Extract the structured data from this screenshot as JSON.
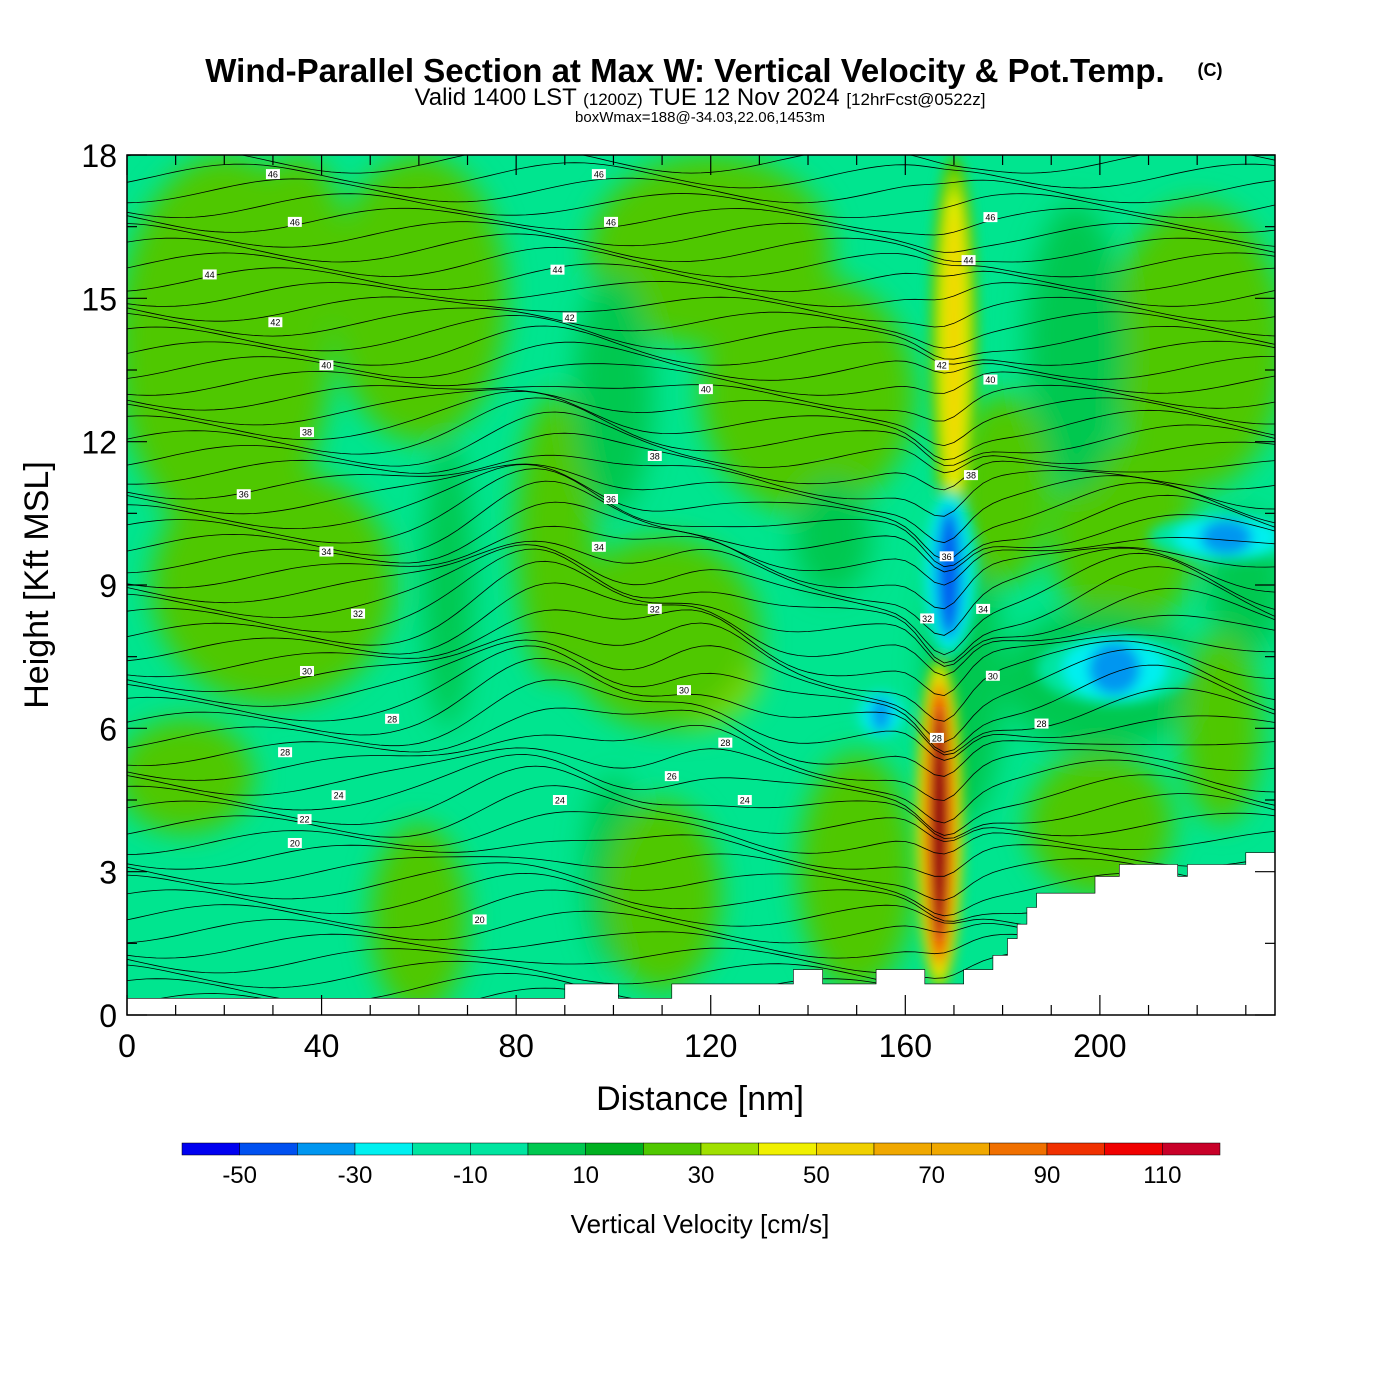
{
  "header": {
    "title": "Wind-Parallel Section at Max W: Vertical Velocity & Pot.Temp.",
    "copyright": "(C)",
    "valid_prefix": "Valid 1400 LST",
    "valid_utc": "(1200Z)",
    "valid_date": "TUE 12 Nov 2024",
    "forecast": "[12hrFcst@0522z]",
    "box_info": "boxWmax=188@-34.03,22.06,1453m"
  },
  "colors": {
    "background_field": "#00e58f",
    "palette": [
      "#0000f0",
      "#0050f0",
      "#0096f0",
      "#00f0f0",
      "#00e5a0",
      "#00c850",
      "#00b020",
      "#50c800",
      "#a0e000",
      "#f0f000",
      "#f0d000",
      "#f0a800",
      "#f07000",
      "#f03000",
      "#f00000",
      "#c80028"
    ]
  },
  "chart_data": {
    "type": "heatmap",
    "xlabel": "Distance [nm]",
    "ylabel": "Height [Kft MSL]",
    "xlim": [
      0,
      236
    ],
    "ylim": [
      0,
      18
    ],
    "x_ticks": [
      "0",
      "40",
      "80",
      "120",
      "160",
      "200"
    ],
    "x_tick_values": [
      0,
      40,
      80,
      120,
      160,
      200
    ],
    "y_ticks": [
      "0",
      "3",
      "6",
      "9",
      "12",
      "15",
      "18"
    ],
    "y_tick_values": [
      0,
      3,
      6,
      9,
      12,
      15,
      18
    ],
    "colorbar": {
      "label": "Vertical Velocity [cm/s]",
      "levels": [
        -60,
        -50,
        -40,
        -30,
        -20,
        -10,
        0,
        10,
        20,
        30,
        40,
        50,
        60,
        70,
        80,
        90,
        100,
        110,
        120
      ],
      "tick_labels": [
        "-50",
        "-30",
        "-10",
        "10",
        "30",
        "50",
        "70",
        "90",
        "110"
      ],
      "tick_values": [
        -50,
        -30,
        -10,
        10,
        30,
        50,
        70,
        90,
        110
      ]
    },
    "features": [
      {
        "kind": "updraft",
        "x": 167,
        "y_range": [
          0.5,
          7.5
        ],
        "max_cm_s": 110
      },
      {
        "kind": "updraft",
        "x": 170,
        "y_range": [
          10,
          18
        ],
        "max_cm_s": 40
      },
      {
        "kind": "downdraft",
        "x": 169,
        "y_range": [
          7.5,
          11
        ],
        "min_cm_s": -40
      },
      {
        "kind": "downdraft",
        "x": 203,
        "y_range": [
          6.5,
          8
        ],
        "min_cm_s": -30
      },
      {
        "kind": "downdraft",
        "x": 226,
        "y_range": [
          9.5,
          10.5
        ],
        "min_cm_s": -30
      },
      {
        "kind": "downdraft",
        "x": 155,
        "y_range": [
          5.8,
          6.8
        ],
        "min_cm_s": -30
      }
    ],
    "contour_labels": [
      {
        "text": "46",
        "x": 30,
        "y": 17.6
      },
      {
        "text": "46",
        "x": 97,
        "y": 17.6
      },
      {
        "text": "46",
        "x": 34.5,
        "y": 16.6
      },
      {
        "text": "46",
        "x": 99.5,
        "y": 16.6
      },
      {
        "text": "46",
        "x": 177.5,
        "y": 16.7
      },
      {
        "text": "44",
        "x": 17,
        "y": 15.5
      },
      {
        "text": "44",
        "x": 88.5,
        "y": 15.6
      },
      {
        "text": "44",
        "x": 173,
        "y": 15.8
      },
      {
        "text": "42",
        "x": 30.5,
        "y": 14.5
      },
      {
        "text": "42",
        "x": 91,
        "y": 14.6
      },
      {
        "text": "42",
        "x": 167.5,
        "y": 13.6
      },
      {
        "text": "40",
        "x": 41,
        "y": 13.6
      },
      {
        "text": "40",
        "x": 119,
        "y": 13.1
      },
      {
        "text": "40",
        "x": 177.5,
        "y": 13.3
      },
      {
        "text": "38",
        "x": 37,
        "y": 12.2
      },
      {
        "text": "38",
        "x": 108.5,
        "y": 11.7
      },
      {
        "text": "38",
        "x": 173.5,
        "y": 11.3
      },
      {
        "text": "36",
        "x": 24,
        "y": 10.9
      },
      {
        "text": "36",
        "x": 99.5,
        "y": 10.8
      },
      {
        "text": "36",
        "x": 168.5,
        "y": 9.6
      },
      {
        "text": "34",
        "x": 41,
        "y": 9.7
      },
      {
        "text": "34",
        "x": 97,
        "y": 9.8
      },
      {
        "text": "34",
        "x": 176,
        "y": 8.5
      },
      {
        "text": "32",
        "x": 47.5,
        "y": 8.4
      },
      {
        "text": "32",
        "x": 108.5,
        "y": 8.5
      },
      {
        "text": "32",
        "x": 164.5,
        "y": 8.3
      },
      {
        "text": "30",
        "x": 37,
        "y": 7.2
      },
      {
        "text": "30",
        "x": 114.5,
        "y": 6.8
      },
      {
        "text": "30",
        "x": 178,
        "y": 7.1
      },
      {
        "text": "28",
        "x": 54.5,
        "y": 6.2
      },
      {
        "text": "28",
        "x": 188,
        "y": 6.1
      },
      {
        "text": "28",
        "x": 32.5,
        "y": 5.5
      },
      {
        "text": "28",
        "x": 123,
        "y": 5.7
      },
      {
        "text": "28",
        "x": 166.5,
        "y": 5.8
      },
      {
        "text": "26",
        "x": 112,
        "y": 5.0
      },
      {
        "text": "24",
        "x": 43.5,
        "y": 4.6
      },
      {
        "text": "24",
        "x": 89,
        "y": 4.5
      },
      {
        "text": "24",
        "x": 127,
        "y": 4.5
      },
      {
        "text": "22",
        "x": 36.5,
        "y": 4.1
      },
      {
        "text": "20",
        "x": 34.5,
        "y": 3.6
      },
      {
        "text": "20",
        "x": 72.5,
        "y": 2.0
      }
    ]
  }
}
